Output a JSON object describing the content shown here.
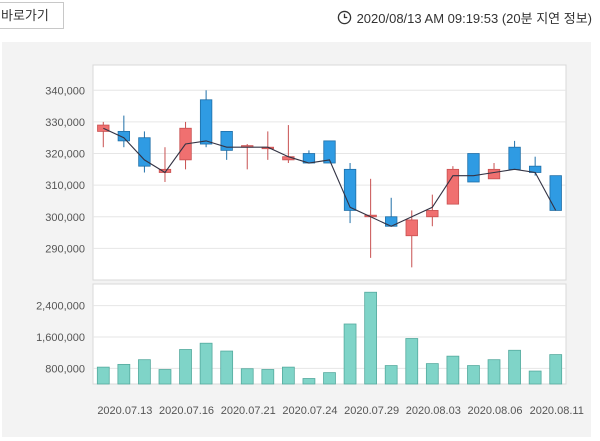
{
  "header": {
    "back_label": "바로가기",
    "timestamp": "2020/08/13 AM 09:19:53 (20분 지연 정보)"
  },
  "chart_data": [
    {
      "type": "candlestick",
      "ylim": [
        280000,
        348000
      ],
      "y_ticks": [
        "340,000",
        "330,000",
        "320,000",
        "310,000",
        "300,000",
        "290,000"
      ],
      "y_tick_values": [
        340000,
        330000,
        320000,
        310000,
        300000,
        290000
      ],
      "x_tick_labels": [
        "2020.07.13",
        "2020.07.16",
        "2020.07.21",
        "2020.07.24",
        "2020.07.29",
        "2020.08.03",
        "2020.08.06",
        "2020.08.11"
      ],
      "x_tick_indices": [
        1,
        4,
        7,
        10,
        13,
        16,
        19,
        22
      ],
      "colors": {
        "up": "#f07070",
        "down": "#2f9be3",
        "line": "#333344"
      },
      "candles": [
        {
          "o": 327000,
          "c": 329000,
          "h": 330000,
          "l": 322000
        },
        {
          "o": 327000,
          "c": 324000,
          "h": 332000,
          "l": 322000
        },
        {
          "o": 325000,
          "c": 316000,
          "h": 327000,
          "l": 314000
        },
        {
          "o": 314000,
          "c": 315000,
          "h": 322000,
          "l": 311000
        },
        {
          "o": 318000,
          "c": 328000,
          "h": 330000,
          "l": 315000
        },
        {
          "o": 337000,
          "c": 323000,
          "h": 340000,
          "l": 322000
        },
        {
          "o": 327000,
          "c": 321000,
          "h": 327000,
          "l": 318000
        },
        {
          "o": 322000,
          "c": 322500,
          "h": 323000,
          "l": 315000
        },
        {
          "o": 322000,
          "c": 322000,
          "h": 327000,
          "l": 318000
        },
        {
          "o": 318000,
          "c": 319000,
          "h": 329000,
          "l": 317000
        },
        {
          "o": 320000,
          "c": 317000,
          "h": 321000,
          "l": 317000
        },
        {
          "o": 324000,
          "c": 317000,
          "h": 324000,
          "l": 317000
        },
        {
          "o": 315000,
          "c": 302000,
          "h": 317000,
          "l": 298000
        },
        {
          "o": 300000,
          "c": 300500,
          "h": 312000,
          "l": 287000
        },
        {
          "o": 300000,
          "c": 297000,
          "h": 306000,
          "l": 297000
        },
        {
          "o": 294000,
          "c": 299000,
          "h": 302000,
          "l": 284000
        },
        {
          "o": 300000,
          "c": 302000,
          "h": 307000,
          "l": 297000
        },
        {
          "o": 304000,
          "c": 315000,
          "h": 316000,
          "l": 304000
        },
        {
          "o": 320000,
          "c": 311000,
          "h": 320000,
          "l": 311000
        },
        {
          "o": 312000,
          "c": 315000,
          "h": 317000,
          "l": 312000
        },
        {
          "o": 322000,
          "c": 315000,
          "h": 324000,
          "l": 315000
        },
        {
          "o": 316000,
          "c": 314000,
          "h": 319000,
          "l": 313000
        },
        {
          "o": 313000,
          "c": 302000,
          "h": 313000,
          "l": 302000
        }
      ],
      "line": [
        328000,
        325000,
        318000,
        314000,
        323000,
        324000,
        322000,
        322000,
        322000,
        319000,
        317000,
        318000,
        303000,
        300000,
        297000,
        300000,
        303000,
        313000,
        313000,
        314000,
        315000,
        314000,
        302000
      ]
    },
    {
      "type": "bar",
      "ylim": [
        400000,
        2950000
      ],
      "y_ticks": [
        "2,400,000",
        "1,600,000",
        "800,000"
      ],
      "y_tick_values": [
        2400000,
        1600000,
        800000
      ],
      "colors": {
        "bar": "#7fd4c8",
        "stroke": "#55aa9e"
      },
      "values": [
        830000,
        900000,
        1020000,
        770000,
        1280000,
        1440000,
        1240000,
        790000,
        770000,
        830000,
        540000,
        690000,
        1930000,
        2740000,
        870000,
        1560000,
        920000,
        1110000,
        870000,
        1020000,
        1260000,
        730000,
        1150000
      ]
    }
  ]
}
